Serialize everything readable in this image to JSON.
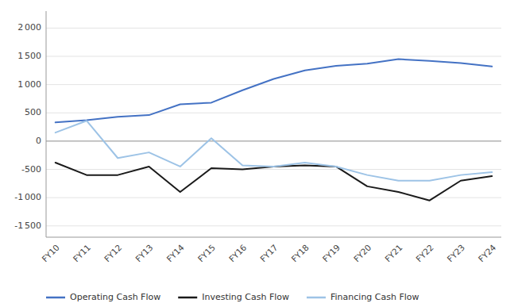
{
  "chart_data": {
    "type": "line",
    "categories": [
      "FY10",
      "FY11",
      "FY12",
      "FY13",
      "FY14",
      "FY15",
      "FY16",
      "FY17",
      "FY18",
      "FY19",
      "FY20",
      "FY21",
      "FY22",
      "FY23",
      "FY24"
    ],
    "series": [
      {
        "name": "Operating Cash Flow",
        "color": "#4472C4",
        "values": [
          330,
          370,
          430,
          460,
          650,
          680,
          900,
          1100,
          1250,
          1330,
          1370,
          1450,
          1420,
          1380,
          1320
        ]
      },
      {
        "name": "Investing Cash Flow",
        "color": "#1a1a1a",
        "values": [
          -380,
          -600,
          -600,
          -450,
          -900,
          -480,
          -500,
          -450,
          -430,
          -450,
          -800,
          -900,
          -1050,
          -700,
          -620
        ]
      },
      {
        "name": "Financing Cash Flow",
        "color": "#9DC3E6",
        "values": [
          150,
          360,
          -300,
          -200,
          -450,
          50,
          -430,
          -450,
          -380,
          -450,
          -600,
          -700,
          -700,
          -600,
          -550
        ]
      }
    ],
    "ylim": [
      -1700,
      2300
    ],
    "yticks": [
      {
        "value": -1500,
        "label": "-1 500"
      },
      {
        "value": -1000,
        "label": "-1 000"
      },
      -500,
      0,
      500,
      {
        "value": 1000,
        "label": "1 000"
      },
      {
        "value": 1500,
        "label": "1 500"
      },
      {
        "value": 2000,
        "label": "2 000"
      }
    ],
    "grid": true,
    "legend": "lower left"
  }
}
